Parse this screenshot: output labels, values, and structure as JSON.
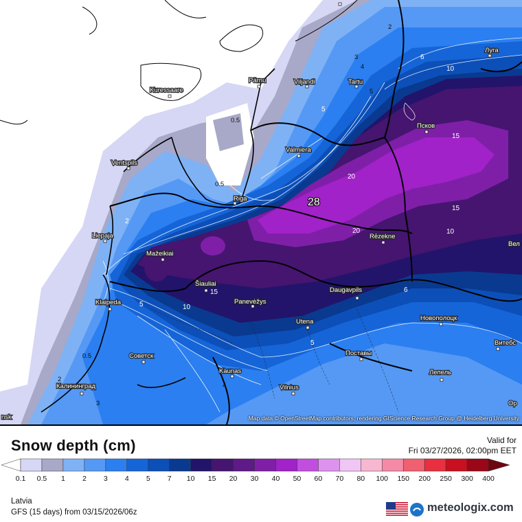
{
  "map": {
    "max_label": "28",
    "contour_labels": [
      "2",
      "3",
      "4",
      "5",
      "6",
      "8",
      "10",
      "15",
      "20",
      "0.5"
    ],
    "cities": [
      {
        "name": "Pärnu"
      },
      {
        "name": "Viljandi"
      },
      {
        "name": "Tartu"
      },
      {
        "name": "Kuressaare"
      },
      {
        "name": "Луга"
      },
      {
        "name": "Псков"
      },
      {
        "name": "Valmiera"
      },
      {
        "name": "Ventspils"
      },
      {
        "name": "Riga"
      },
      {
        "name": "Liepaja"
      },
      {
        "name": "Mažeikiai"
      },
      {
        "name": "Rēzekne"
      },
      {
        "name": "Šiauliai"
      },
      {
        "name": "Klaipeda"
      },
      {
        "name": "Panevėžys"
      },
      {
        "name": "Daugavpils"
      },
      {
        "name": "Новополоцк"
      },
      {
        "name": "Utena"
      },
      {
        "name": "Советск"
      },
      {
        "name": "Поставы"
      },
      {
        "name": "Витебс"
      },
      {
        "name": "Kaunas"
      },
      {
        "name": "Лепель"
      },
      {
        "name": "Калининград"
      },
      {
        "name": "Vilnius"
      },
      {
        "name": "Вел"
      },
      {
        "name": "Ор"
      },
      {
        "name": "nsk"
      }
    ],
    "credit": "Map data © OpenStreetMap contributors, rendering GIScience Research Group @ Heidelberg University"
  },
  "legend": {
    "title": "Snow depth (cm)",
    "valid_for": "Valid for",
    "valid_date": "Fri 03/27/2026, 02:00pm EET",
    "region": "Latvia",
    "run": "GFS (15 days) from 03/15/2026/06z",
    "brand": "meteologix.com",
    "levels": [
      "0.1",
      "0.5",
      "1",
      "2",
      "3",
      "4",
      "5",
      "7",
      "10",
      "15",
      "20",
      "30",
      "40",
      "50",
      "60",
      "70",
      "80",
      "100",
      "150",
      "200",
      "250",
      "300",
      "400"
    ],
    "colors": [
      "#ffffff",
      "#d6d6f5",
      "#a8a8c8",
      "#7fb2f5",
      "#5599f5",
      "#2b7ff0",
      "#1565d8",
      "#0c4fb8",
      "#093a90",
      "#22146a",
      "#45156f",
      "#5e1a86",
      "#7f1fa8",
      "#a122c8",
      "#c24ee0",
      "#dd93ee",
      "#f0c6f4",
      "#f7b7d0",
      "#f58aa6",
      "#f06070",
      "#e83040",
      "#c81020",
      "#9a0818",
      "#6e0610"
    ]
  }
}
